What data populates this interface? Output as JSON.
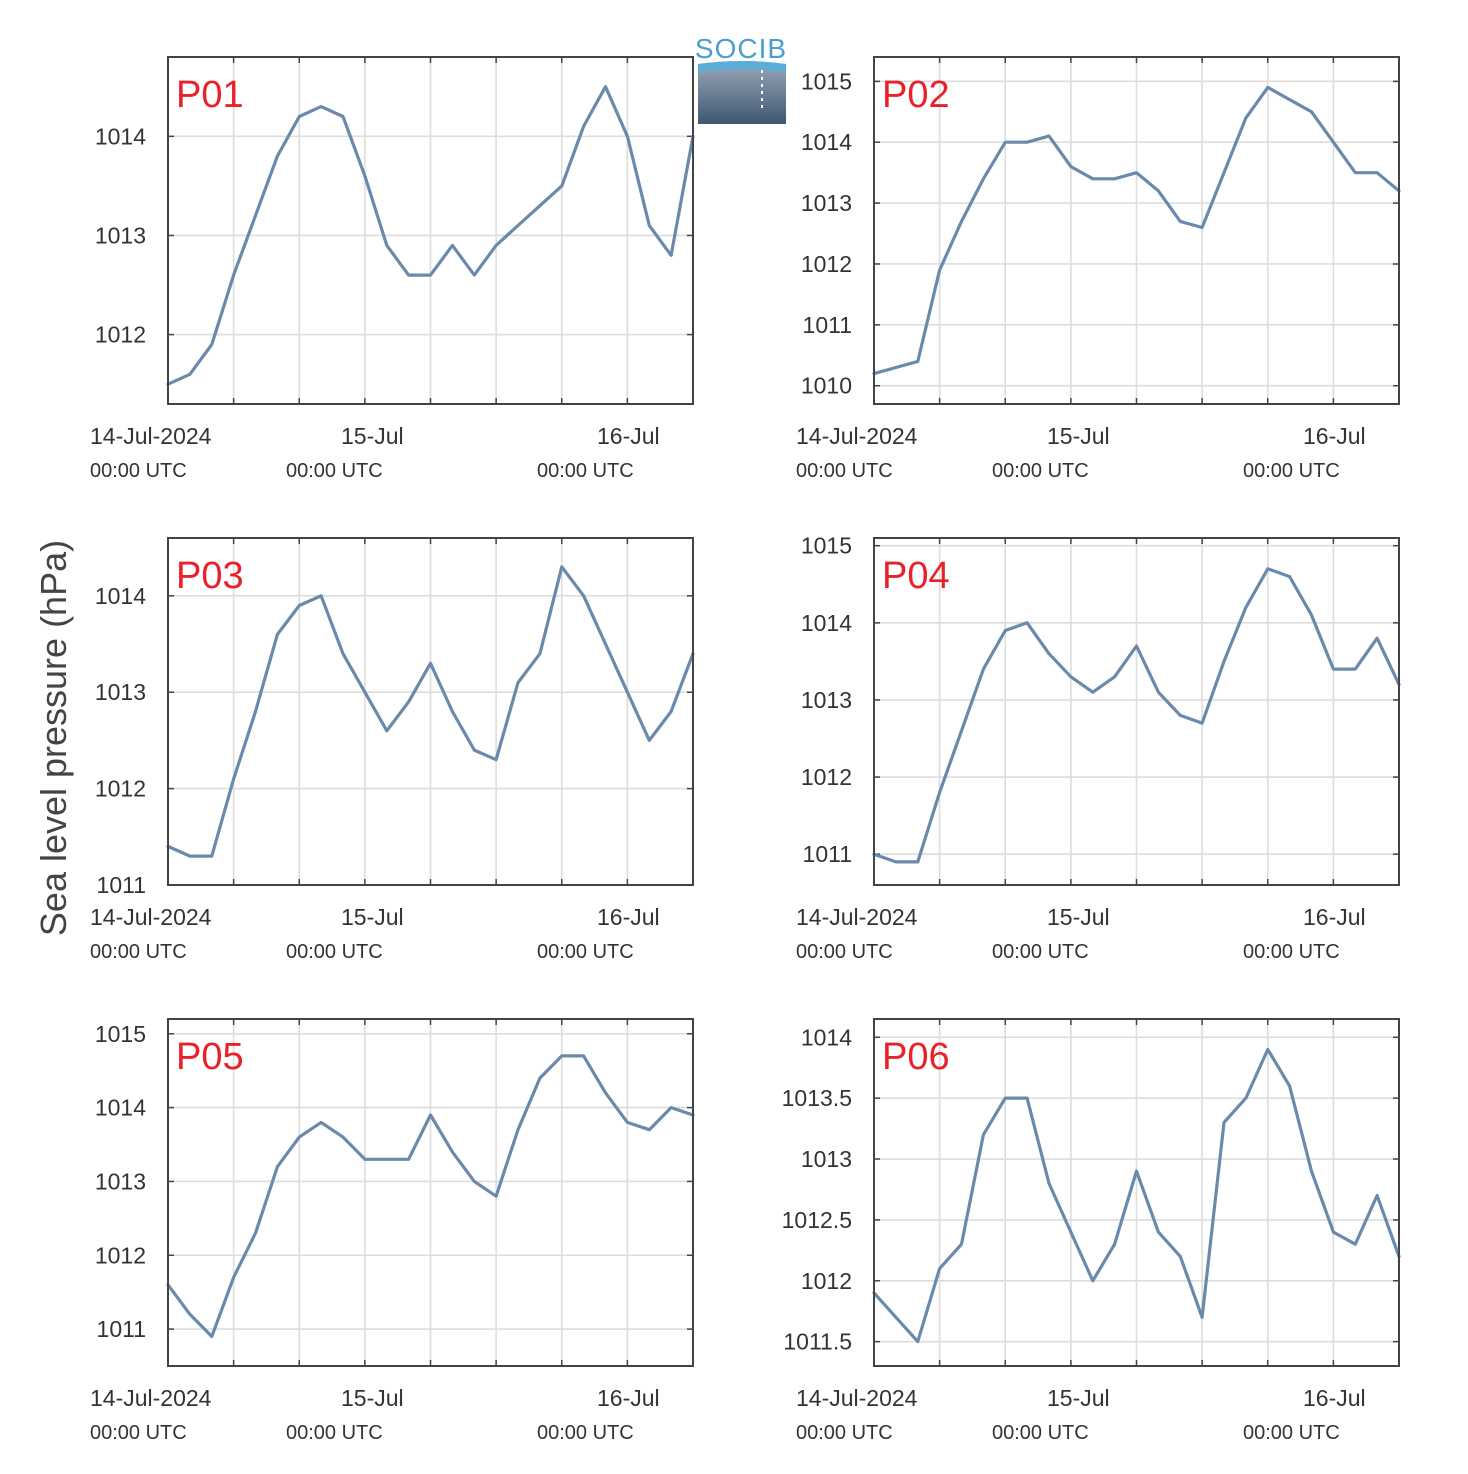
{
  "figure": {
    "ylabel": "Sea level pressure (hPa)",
    "logo_text": "SOCIB",
    "colors": {
      "line": "#6a8aac",
      "panel_label": "#e8212b",
      "grid": "#dddddd",
      "frame": "#444444"
    },
    "xticks": [
      {
        "top": "14-Jul-2024",
        "bottom": "00:00 UTC"
      },
      {
        "top": "15-Jul",
        "bottom": "00:00 UTC"
      },
      {
        "top": "16-Jul",
        "bottom": "00:00 UTC"
      }
    ]
  },
  "chart_data": [
    {
      "type": "line",
      "title": "P01",
      "xlim": [
        "2024-07-14T00:00",
        "2024-07-16T00:00"
      ],
      "ylim": [
        1011.3,
        1014.8
      ],
      "yticks": [
        1012,
        1013,
        1014
      ],
      "series": [
        {
          "x": [
            "2024-07-14T00:00",
            "2024-07-14T02:00",
            "2024-07-14T04:00",
            "2024-07-14T06:00",
            "2024-07-14T08:00",
            "2024-07-14T10:00",
            "2024-07-14T12:00",
            "2024-07-14T14:00",
            "2024-07-14T16:00",
            "2024-07-14T18:00",
            "2024-07-14T20:00",
            "2024-07-14T22:00",
            "2024-07-15T00:00",
            "2024-07-15T02:00",
            "2024-07-15T04:00",
            "2024-07-15T06:00",
            "2024-07-15T08:00",
            "2024-07-15T10:00",
            "2024-07-15T12:00",
            "2024-07-15T14:00",
            "2024-07-15T16:00",
            "2024-07-15T18:00",
            "2024-07-15T20:00",
            "2024-07-15T22:00",
            "2024-07-16T00:00"
          ],
          "y": [
            1011.5,
            1011.6,
            1011.9,
            1012.6,
            1013.2,
            1013.8,
            1014.2,
            1014.3,
            1014.2,
            1013.6,
            1012.9,
            1012.6,
            1012.6,
            1012.9,
            1012.6,
            1012.9,
            1013.1,
            1013.3,
            1013.5,
            1014.1,
            1014.5,
            1014.0,
            1013.1,
            1012.8,
            1014.0
          ]
        }
      ]
    },
    {
      "type": "line",
      "title": "P02",
      "xlim": [
        "2024-07-14T00:00",
        "2024-07-16T00:00"
      ],
      "ylim": [
        1009.7,
        1015.4
      ],
      "yticks": [
        1010,
        1011,
        1012,
        1013,
        1014,
        1015
      ],
      "series": [
        {
          "x": [
            "2024-07-14T00:00",
            "2024-07-14T02:00",
            "2024-07-14T04:00",
            "2024-07-14T06:00",
            "2024-07-14T08:00",
            "2024-07-14T10:00",
            "2024-07-14T12:00",
            "2024-07-14T14:00",
            "2024-07-14T16:00",
            "2024-07-14T18:00",
            "2024-07-14T20:00",
            "2024-07-14T22:00",
            "2024-07-15T00:00",
            "2024-07-15T02:00",
            "2024-07-15T04:00",
            "2024-07-15T06:00",
            "2024-07-15T08:00",
            "2024-07-15T10:00",
            "2024-07-15T12:00",
            "2024-07-15T14:00",
            "2024-07-15T16:00",
            "2024-07-15T18:00",
            "2024-07-15T20:00",
            "2024-07-15T22:00",
            "2024-07-16T00:00"
          ],
          "y": [
            1010.2,
            1010.3,
            1010.4,
            1011.9,
            1012.7,
            1013.4,
            1014.0,
            1014.0,
            1014.1,
            1013.6,
            1013.4,
            1013.4,
            1013.5,
            1013.2,
            1012.7,
            1012.6,
            1013.5,
            1014.4,
            1014.9,
            1014.7,
            1014.5,
            1014.0,
            1013.5,
            1013.5,
            1013.2
          ]
        }
      ]
    },
    {
      "type": "line",
      "title": "P03",
      "xlim": [
        "2024-07-14T00:00",
        "2024-07-16T00:00"
      ],
      "ylim": [
        1011.0,
        1014.6
      ],
      "yticks": [
        1011,
        1012,
        1013,
        1014
      ],
      "series": [
        {
          "x": [
            "2024-07-14T00:00",
            "2024-07-14T02:00",
            "2024-07-14T04:00",
            "2024-07-14T06:00",
            "2024-07-14T08:00",
            "2024-07-14T10:00",
            "2024-07-14T12:00",
            "2024-07-14T14:00",
            "2024-07-14T16:00",
            "2024-07-14T18:00",
            "2024-07-14T20:00",
            "2024-07-14T22:00",
            "2024-07-15T00:00",
            "2024-07-15T02:00",
            "2024-07-15T04:00",
            "2024-07-15T06:00",
            "2024-07-15T08:00",
            "2024-07-15T10:00",
            "2024-07-15T12:00",
            "2024-07-15T14:00",
            "2024-07-15T16:00",
            "2024-07-15T18:00",
            "2024-07-15T20:00",
            "2024-07-15T22:00",
            "2024-07-16T00:00"
          ],
          "y": [
            1011.4,
            1011.3,
            1011.3,
            1012.1,
            1012.8,
            1013.6,
            1013.9,
            1014.0,
            1013.4,
            1013.0,
            1012.6,
            1012.9,
            1013.3,
            1012.8,
            1012.4,
            1012.3,
            1013.1,
            1013.4,
            1014.3,
            1014.0,
            1013.5,
            1013.0,
            1012.5,
            1012.8,
            1013.4
          ]
        }
      ]
    },
    {
      "type": "line",
      "title": "P04",
      "xlim": [
        "2024-07-14T00:00",
        "2024-07-16T00:00"
      ],
      "ylim": [
        1010.6,
        1015.1
      ],
      "yticks": [
        1011,
        1012,
        1013,
        1014,
        1015
      ],
      "series": [
        {
          "x": [
            "2024-07-14T00:00",
            "2024-07-14T02:00",
            "2024-07-14T04:00",
            "2024-07-14T06:00",
            "2024-07-14T08:00",
            "2024-07-14T10:00",
            "2024-07-14T12:00",
            "2024-07-14T14:00",
            "2024-07-14T16:00",
            "2024-07-14T18:00",
            "2024-07-14T20:00",
            "2024-07-14T22:00",
            "2024-07-15T00:00",
            "2024-07-15T02:00",
            "2024-07-15T04:00",
            "2024-07-15T06:00",
            "2024-07-15T08:00",
            "2024-07-15T10:00",
            "2024-07-15T12:00",
            "2024-07-15T14:00",
            "2024-07-15T16:00",
            "2024-07-15T18:00",
            "2024-07-15T20:00",
            "2024-07-15T22:00",
            "2024-07-16T00:00"
          ],
          "y": [
            1011.0,
            1010.9,
            1010.9,
            1011.8,
            1012.6,
            1013.4,
            1013.9,
            1014.0,
            1013.6,
            1013.3,
            1013.1,
            1013.3,
            1013.7,
            1013.1,
            1012.8,
            1012.7,
            1013.5,
            1014.2,
            1014.7,
            1014.6,
            1014.1,
            1013.4,
            1013.4,
            1013.8,
            1013.2
          ]
        }
      ]
    },
    {
      "type": "line",
      "title": "P05",
      "xlim": [
        "2024-07-14T00:00",
        "2024-07-16T00:00"
      ],
      "ylim": [
        1010.5,
        1015.2
      ],
      "yticks": [
        1011,
        1012,
        1013,
        1014,
        1015
      ],
      "series": [
        {
          "x": [
            "2024-07-14T00:00",
            "2024-07-14T02:00",
            "2024-07-14T04:00",
            "2024-07-14T06:00",
            "2024-07-14T08:00",
            "2024-07-14T10:00",
            "2024-07-14T12:00",
            "2024-07-14T14:00",
            "2024-07-14T16:00",
            "2024-07-14T18:00",
            "2024-07-14T20:00",
            "2024-07-14T22:00",
            "2024-07-15T00:00",
            "2024-07-15T02:00",
            "2024-07-15T04:00",
            "2024-07-15T06:00",
            "2024-07-15T08:00",
            "2024-07-15T10:00",
            "2024-07-15T12:00",
            "2024-07-15T14:00",
            "2024-07-15T16:00",
            "2024-07-15T18:00",
            "2024-07-15T20:00",
            "2024-07-15T22:00",
            "2024-07-16T00:00"
          ],
          "y": [
            1011.6,
            1011.2,
            1010.9,
            1011.7,
            1012.3,
            1013.2,
            1013.6,
            1013.8,
            1013.6,
            1013.3,
            1013.3,
            1013.3,
            1013.9,
            1013.4,
            1013.0,
            1012.8,
            1013.7,
            1014.4,
            1014.7,
            1014.7,
            1014.2,
            1013.8,
            1013.7,
            1014.0,
            1013.9
          ]
        }
      ]
    },
    {
      "type": "line",
      "title": "P06",
      "xlim": [
        "2024-07-14T00:00",
        "2024-07-16T00:00"
      ],
      "ylim": [
        1011.3,
        1014.15
      ],
      "yticks": [
        1011.5,
        1012,
        1012.5,
        1013,
        1013.5,
        1014
      ],
      "series": [
        {
          "x": [
            "2024-07-14T00:00",
            "2024-07-14T02:00",
            "2024-07-14T04:00",
            "2024-07-14T06:00",
            "2024-07-14T08:00",
            "2024-07-14T10:00",
            "2024-07-14T12:00",
            "2024-07-14T14:00",
            "2024-07-14T16:00",
            "2024-07-14T18:00",
            "2024-07-14T20:00",
            "2024-07-14T22:00",
            "2024-07-15T00:00",
            "2024-07-15T02:00",
            "2024-07-15T04:00",
            "2024-07-15T06:00",
            "2024-07-15T08:00",
            "2024-07-15T10:00",
            "2024-07-15T12:00",
            "2024-07-15T14:00",
            "2024-07-15T16:00",
            "2024-07-15T18:00",
            "2024-07-15T20:00",
            "2024-07-15T22:00",
            "2024-07-16T00:00"
          ],
          "y": [
            1011.9,
            1011.7,
            1011.5,
            1012.1,
            1012.3,
            1013.2,
            1013.5,
            1013.5,
            1012.8,
            1012.4,
            1012.0,
            1012.3,
            1012.9,
            1012.4,
            1012.2,
            1011.7,
            1013.3,
            1013.5,
            1013.9,
            1013.6,
            1012.9,
            1012.4,
            1012.3,
            1012.7,
            1012.2
          ]
        }
      ]
    }
  ]
}
